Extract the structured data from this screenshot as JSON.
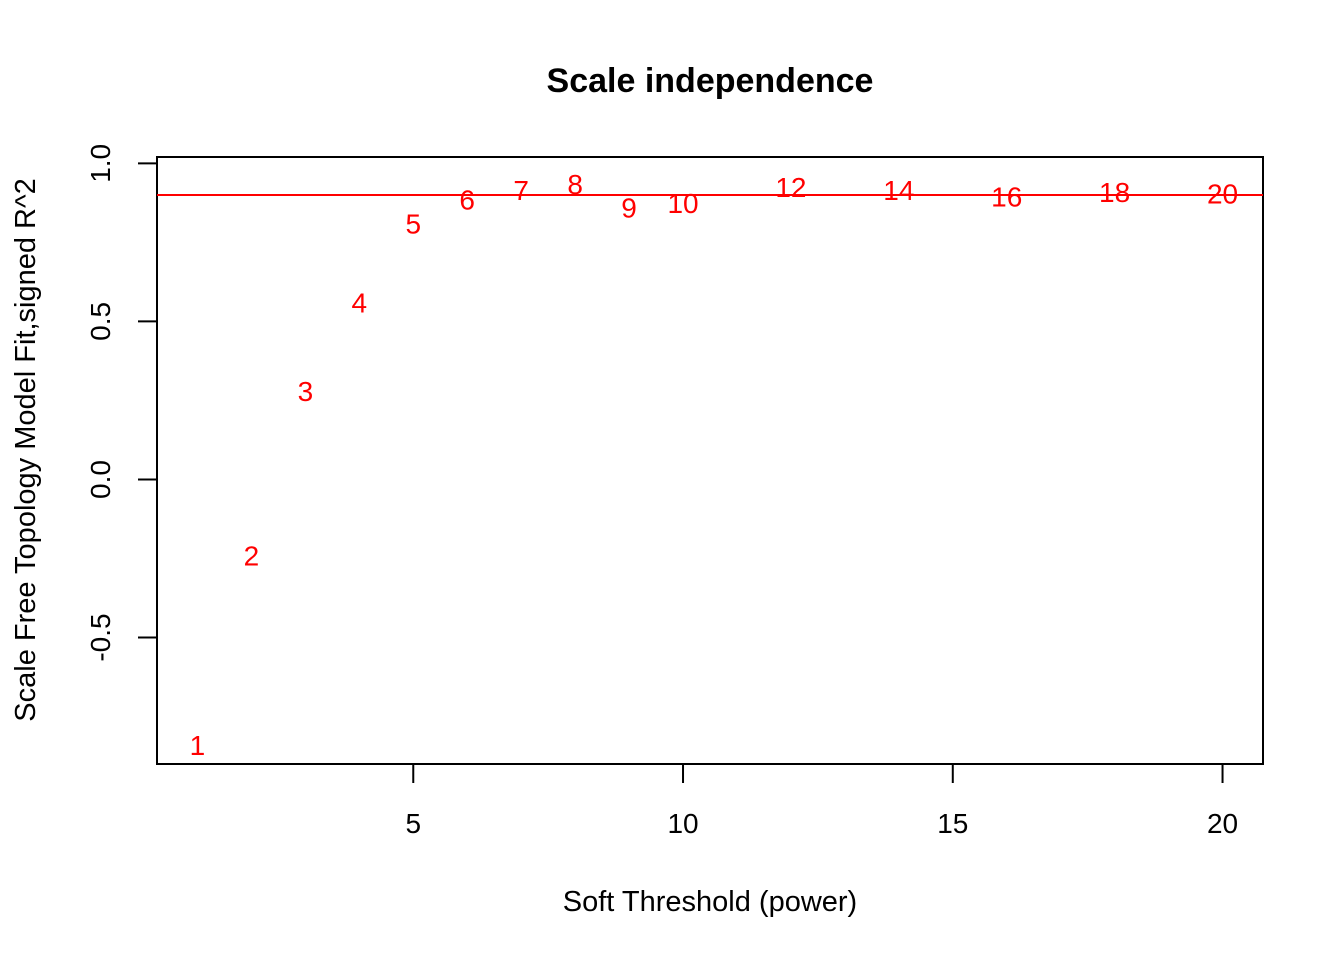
{
  "chart_data": {
    "type": "scatter",
    "title": "Scale independence",
    "xlabel": "Soft Threshold (power)",
    "ylabel": "Scale Free Topology Model Fit,signed R^2",
    "xlim": [
      0.25,
      20.75
    ],
    "ylim": [
      -0.9,
      1.02
    ],
    "xticks": [
      5,
      10,
      15,
      20
    ],
    "yticks": [
      -0.5,
      0.0,
      0.5,
      1.0
    ],
    "xtick_labels": [
      "5",
      "10",
      "15",
      "20"
    ],
    "ytick_labels": [
      "-0.5",
      "0.0",
      "0.5",
      "1.0"
    ],
    "point_style": "text labels",
    "point_color": "#ff0000",
    "points": [
      {
        "x": 1,
        "y": -0.84,
        "label": "1"
      },
      {
        "x": 2,
        "y": -0.24,
        "label": "2"
      },
      {
        "x": 3,
        "y": 0.28,
        "label": "3"
      },
      {
        "x": 4,
        "y": 0.56,
        "label": "4"
      },
      {
        "x": 5,
        "y": 0.81,
        "label": "5"
      },
      {
        "x": 6,
        "y": 0.885,
        "label": "6"
      },
      {
        "x": 7,
        "y": 0.915,
        "label": "7"
      },
      {
        "x": 8,
        "y": 0.935,
        "label": "8"
      },
      {
        "x": 9,
        "y": 0.86,
        "label": "9"
      },
      {
        "x": 10,
        "y": 0.875,
        "label": "10"
      },
      {
        "x": 12,
        "y": 0.925,
        "label": "12"
      },
      {
        "x": 14,
        "y": 0.915,
        "label": "14"
      },
      {
        "x": 16,
        "y": 0.895,
        "label": "16"
      },
      {
        "x": 18,
        "y": 0.91,
        "label": "18"
      },
      {
        "x": 20,
        "y": 0.905,
        "label": "20"
      }
    ],
    "reference_line": {
      "y": 0.9,
      "color": "#ff0000"
    },
    "grid": false,
    "legend": "none"
  }
}
